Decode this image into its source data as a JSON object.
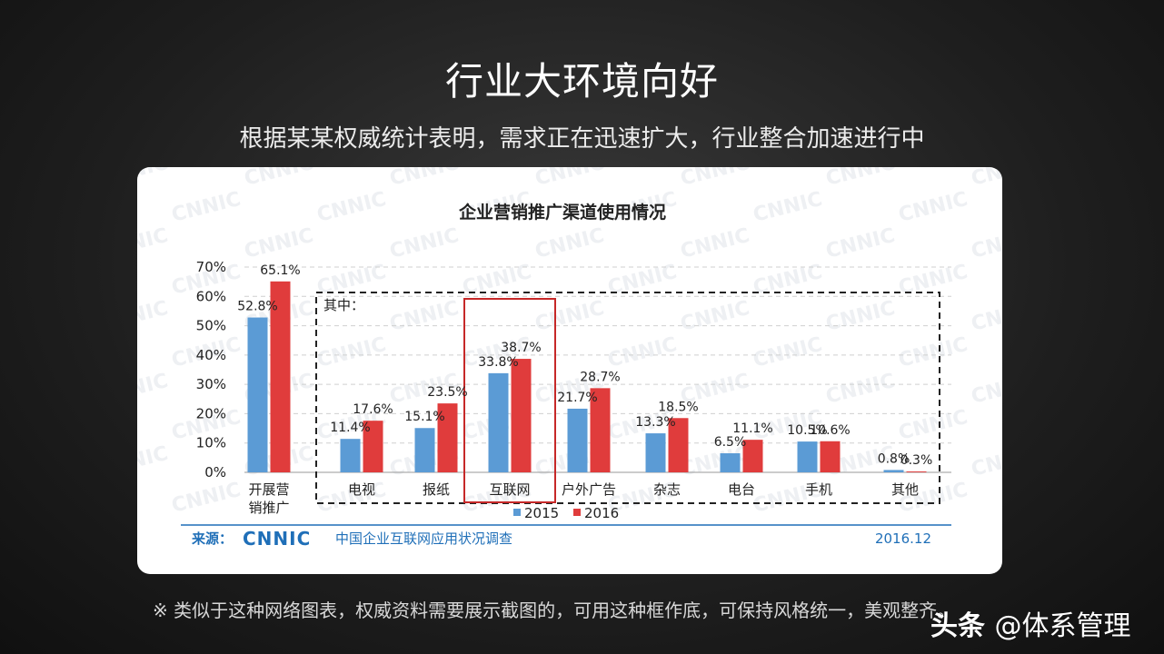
{
  "slide": {
    "title": "行业大环境向好",
    "subtitle": "根据某某权威统计表明，需求正在迅速扩大，行业整合加速进行中",
    "footnote": "※ 类似于这种网络图表，权威资料需要展示截图的，可用这种框作底，可保持风格统一，美观整齐。",
    "brand_name": "头条",
    "brand_handle": "@体系管理"
  },
  "chart_data": {
    "type": "bar",
    "title": "企业营销推广渠道使用情况",
    "categories": [
      "开展营销推广",
      "电视",
      "报纸",
      "互联网",
      "户外广告",
      "杂志",
      "电台",
      "手机",
      "其他"
    ],
    "series": [
      {
        "name": "2015",
        "values": [
          52.8,
          11.4,
          15.1,
          33.8,
          21.7,
          13.3,
          6.5,
          10.5,
          0.8
        ],
        "color": "#5b9bd5"
      },
      {
        "name": "2016",
        "values": [
          65.1,
          17.6,
          23.5,
          38.7,
          28.7,
          18.5,
          11.1,
          10.6,
          0.3
        ],
        "color": "#e03c3c"
      }
    ],
    "yticks": [
      "0%",
      "10%",
      "20%",
      "30%",
      "40%",
      "50%",
      "60%",
      "70%"
    ],
    "ylim": [
      0,
      70
    ],
    "grid": true,
    "legend_position": "bottom",
    "group_label": "其中：",
    "highlight_category": "互联网",
    "source_label": "来源：",
    "source_logo": "CNNIC",
    "source_text": "中国企业互联网应用状况调查",
    "date": "2016.12",
    "watermark": "CNNIC"
  }
}
